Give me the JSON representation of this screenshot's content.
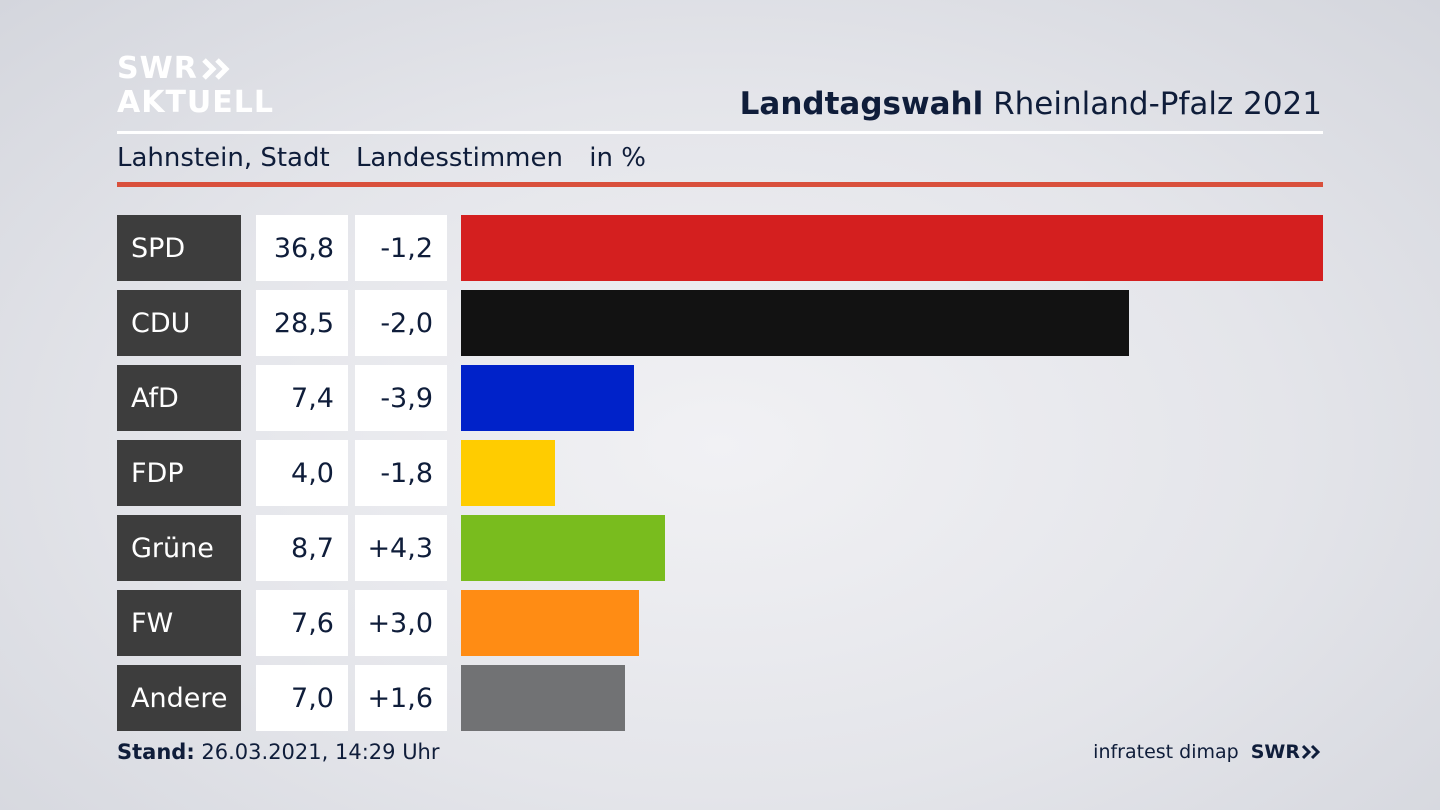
{
  "logo": {
    "line1": "SWR",
    "line2": "AKTUELL"
  },
  "header": {
    "title_bold": "Landtagswahl",
    "title_rest": "Rheinland-Pfalz 2021"
  },
  "subheader": {
    "location": "Lahnstein, Stadt",
    "vote_type": "Landesstimmen",
    "unit": "in %"
  },
  "footer": {
    "stand_label": "Stand:",
    "stand_value": "26.03.2021, 14:29 Uhr",
    "source": "infratest dimap",
    "brand": "SWR"
  },
  "colors": {
    "accent_rule": "#d9503c",
    "party_label_bg": "#3d3d3d"
  },
  "chart_data": {
    "type": "bar",
    "orientation": "horizontal",
    "categories": [
      "SPD",
      "CDU",
      "AfD",
      "FDP",
      "Grüne",
      "FW",
      "Andere"
    ],
    "values": [
      36.8,
      28.5,
      7.4,
      4.0,
      8.7,
      7.6,
      7.0
    ],
    "value_labels": [
      "36,8",
      "28,5",
      "7,4",
      "4,0",
      "8,7",
      "7,6",
      "7,0"
    ],
    "diff_labels": [
      "-1,2",
      "-2,0",
      "-3,9",
      "-1,8",
      "+4,3",
      "+3,0",
      "+1,6"
    ],
    "diffs": [
      -1.2,
      -2.0,
      -3.9,
      -1.8,
      4.3,
      3.0,
      1.6
    ],
    "colors": [
      "#d41f1f",
      "#121212",
      "#0022c9",
      "#ffcc00",
      "#79bc1e",
      "#ff8c14",
      "#717274"
    ],
    "xlim": [
      0,
      36.8
    ]
  }
}
